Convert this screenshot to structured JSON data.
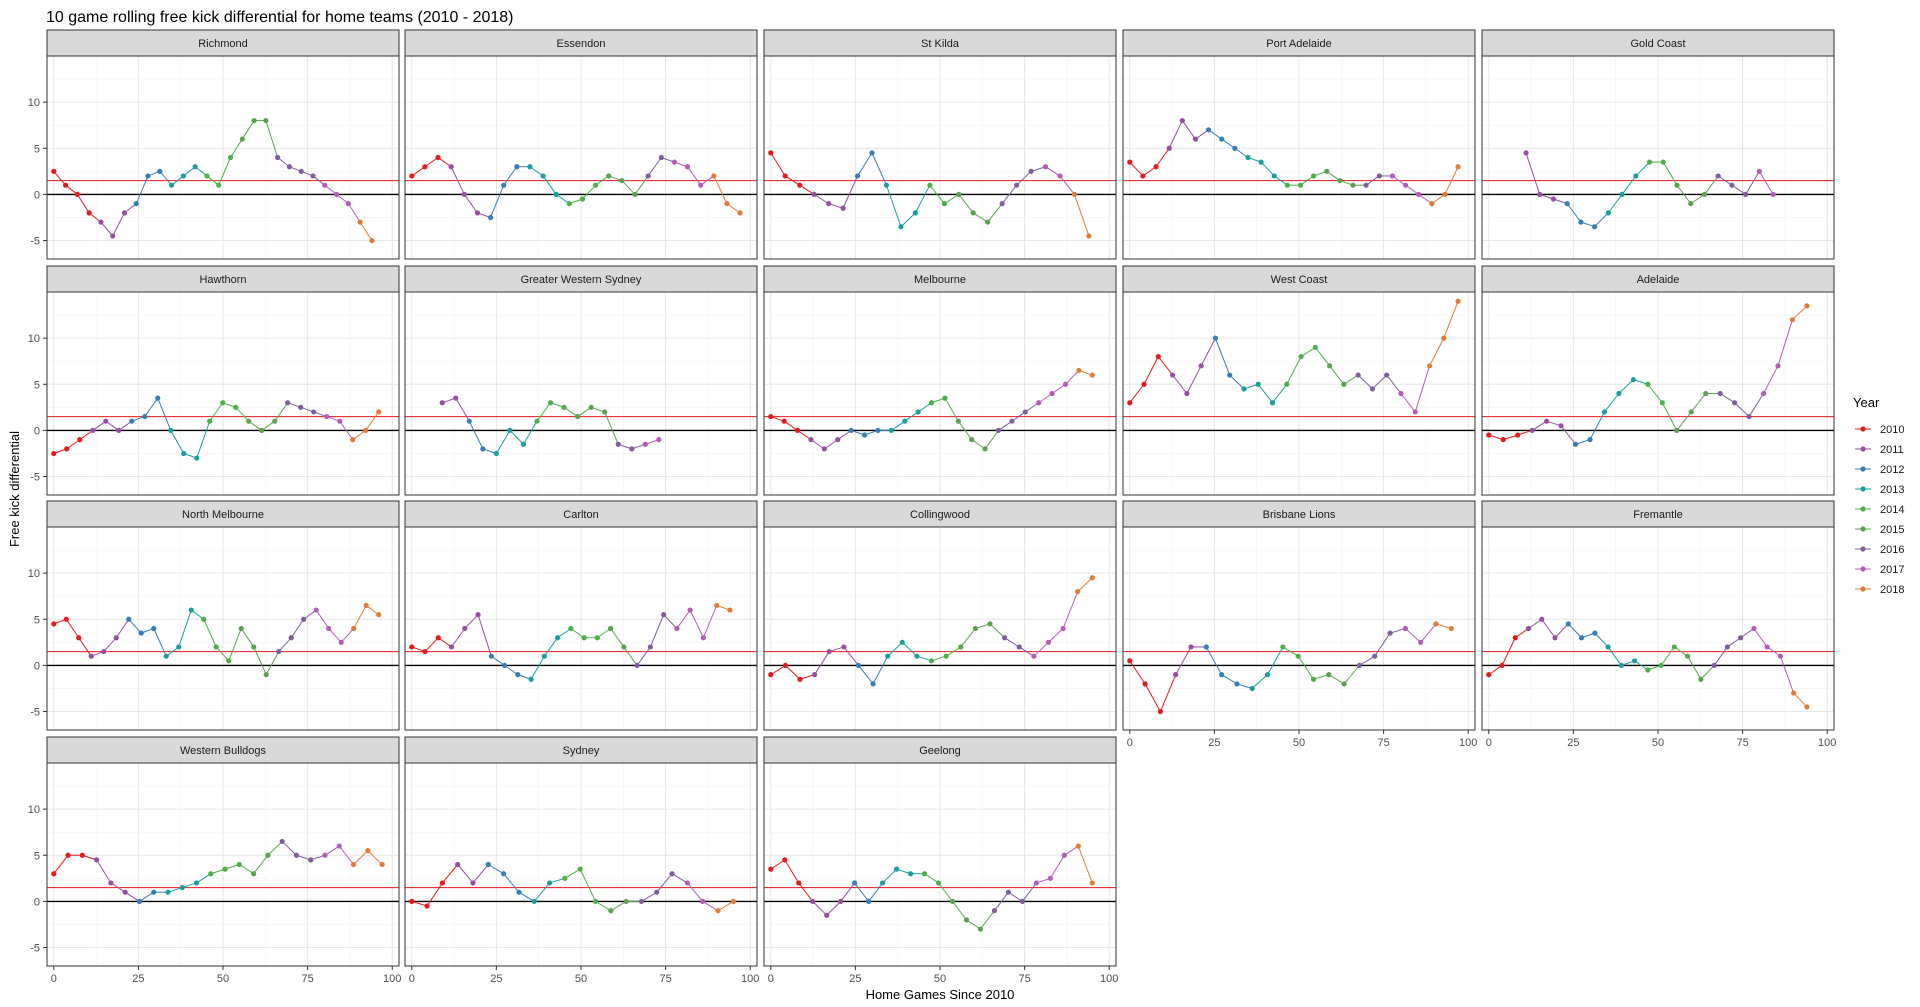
{
  "chart_data": {
    "type": "line",
    "title": "10 game rolling free kick differential for home teams (2010 - 2018)",
    "xlabel": "Home Games Since 2010",
    "ylabel": "Free kick differential",
    "xlim": [
      -2,
      102
    ],
    "ylim": [
      -7,
      15
    ],
    "x_ticks": [
      0,
      25,
      50,
      75,
      100
    ],
    "y_ticks": [
      -5,
      0,
      5,
      10
    ],
    "reference_lines": [
      {
        "y": 0,
        "color": "#000000"
      },
      {
        "y": 1.5,
        "color": "#e41a1c"
      }
    ],
    "grid": true,
    "legend": {
      "title": "Year",
      "position": "right",
      "entries": [
        {
          "label": "2010",
          "color": "#E41A1C"
        },
        {
          "label": "2011",
          "color": "#984EA3"
        },
        {
          "label": "2012",
          "color": "#377EB8"
        },
        {
          "label": "2013",
          "color": "#1B9E9E"
        },
        {
          "label": "2014",
          "color": "#4DAF4A"
        },
        {
          "label": "2015",
          "color": "#5CA150"
        },
        {
          "label": "2016",
          "color": "#7F5E9E"
        },
        {
          "label": "2017",
          "color": "#B45CB8"
        },
        {
          "label": "2018",
          "color": "#E07B39"
        }
      ]
    },
    "facets": [
      {
        "name": "Richmond",
        "games": [
          0,
          11,
          22,
          33,
          44,
          55,
          66,
          77,
          88
        ],
        "end": 94,
        "y": [
          2.5,
          1,
          0,
          -2,
          -3,
          -4.5,
          -2,
          -1,
          2,
          2.5,
          1,
          2,
          3,
          2,
          1,
          4,
          6,
          8,
          8,
          4,
          3,
          2.5,
          2,
          1,
          0,
          -1,
          -3,
          -5
        ]
      },
      {
        "name": "Essendon",
        "games": [
          0,
          11,
          22,
          33,
          44,
          55,
          66,
          77,
          88
        ],
        "end": 97,
        "y": [
          2,
          3,
          4,
          3,
          0,
          -2,
          -2.5,
          1,
          3,
          3,
          2,
          0,
          -1,
          -0.5,
          1,
          2,
          1.5,
          0,
          2,
          4,
          3.5,
          3,
          1,
          2,
          -1,
          -2
        ]
      },
      {
        "name": "St Kilda",
        "games": [
          0,
          11,
          22,
          33,
          44,
          55,
          66,
          77,
          88
        ],
        "end": 94,
        "y": [
          4.5,
          2,
          1,
          0,
          -1,
          -1.5,
          2,
          4.5,
          1,
          -3.5,
          -2,
          1,
          -1,
          0,
          -2,
          -3,
          -1,
          1,
          2.5,
          3,
          2,
          0,
          -4.5
        ]
      },
      {
        "name": "Port Adelaide",
        "games": [
          0,
          11,
          22,
          33,
          44,
          55,
          66,
          77,
          88
        ],
        "end": 97,
        "y": [
          3.5,
          2,
          3,
          5,
          8,
          6,
          7,
          6,
          5,
          4,
          3.5,
          2,
          1,
          1,
          2,
          2.5,
          1.5,
          1,
          1,
          2,
          2,
          1,
          0,
          -1,
          0,
          3
        ]
      },
      {
        "name": "Gold Coast",
        "games": [
          11,
          22,
          33,
          44,
          55,
          66,
          77,
          88
        ],
        "end": 84,
        "y": [
          4.5,
          0,
          -0.5,
          -1,
          -3,
          -3.5,
          -2,
          0,
          2,
          3.5,
          3.5,
          1,
          -1,
          0,
          2,
          1,
          0,
          2.5,
          0
        ]
      },
      {
        "name": "Hawthorn",
        "games": [
          0,
          11,
          22,
          33,
          44,
          55,
          66,
          77,
          88
        ],
        "end": 96,
        "y": [
          -2.5,
          -2,
          -1,
          0,
          1,
          0,
          1,
          1.5,
          3.5,
          0,
          -2.5,
          -3,
          1,
          3,
          2.5,
          1,
          0,
          1,
          3,
          2.5,
          2,
          1.5,
          1,
          -1,
          0,
          2
        ]
      },
      {
        "name": "Greater Western Sydney",
        "games": [
          9,
          14,
          25,
          36,
          47,
          58,
          69,
          80
        ],
        "end": 73,
        "y": [
          3,
          3.5,
          1,
          -2,
          -2.5,
          0,
          -1.5,
          1,
          3,
          2.5,
          1.5,
          2.5,
          2,
          -1.5,
          -2,
          -1.5,
          -1
        ]
      },
      {
        "name": "Melbourne",
        "games": [
          0,
          11,
          22,
          33,
          44,
          55,
          66,
          77,
          88
        ],
        "end": 95,
        "y": [
          1.5,
          1,
          0,
          -1,
          -2,
          -1,
          0,
          -0.5,
          0,
          0,
          1,
          2,
          3,
          3.5,
          1,
          -1,
          -2,
          0,
          1,
          2,
          3,
          4,
          5,
          6.5,
          6
        ]
      },
      {
        "name": "West Coast",
        "games": [
          0,
          11,
          22,
          33,
          44,
          55,
          66,
          77,
          88
        ],
        "end": 97,
        "y": [
          3,
          5,
          8,
          6,
          4,
          7,
          10,
          6,
          4.5,
          5,
          3,
          5,
          8,
          9,
          7,
          5,
          6,
          4.5,
          6,
          4,
          2,
          7,
          10,
          14
        ]
      },
      {
        "name": "Adelaide",
        "games": [
          0,
          11,
          22,
          33,
          44,
          55,
          66,
          77,
          88
        ],
        "end": 94,
        "y": [
          -0.5,
          -1,
          -0.5,
          0,
          1,
          0.5,
          -1.5,
          -1,
          2,
          4,
          5.5,
          5,
          3,
          0,
          2,
          4,
          4,
          3,
          1.5,
          4,
          7,
          12,
          13.5
        ]
      },
      {
        "name": "North Melbourne",
        "games": [
          0,
          11,
          22,
          33,
          44,
          55,
          66,
          77,
          88
        ],
        "end": 96,
        "y": [
          4.5,
          5,
          3,
          1,
          1.5,
          3,
          5,
          3.5,
          4,
          1,
          2,
          6,
          5,
          2,
          0.5,
          4,
          2,
          -1,
          1.5,
          3,
          5,
          6,
          4,
          2.5,
          4,
          6.5,
          5.5
        ]
      },
      {
        "name": "Carlton",
        "games": [
          0,
          11,
          22,
          33,
          44,
          55,
          66,
          77,
          88
        ],
        "end": 94,
        "y": [
          2,
          1.5,
          3,
          2,
          4,
          5.5,
          1,
          0,
          -1,
          -1.5,
          1,
          3,
          4,
          3,
          3,
          4,
          2,
          0,
          2,
          5.5,
          4,
          6,
          3,
          6.5,
          6
        ]
      },
      {
        "name": "Collingwood",
        "games": [
          0,
          11,
          22,
          33,
          44,
          55,
          66,
          77,
          88
        ],
        "end": 95,
        "y": [
          -1,
          0,
          -1.5,
          -1,
          1.5,
          2,
          0,
          -2,
          1,
          2.5,
          1,
          0.5,
          1,
          2,
          4,
          4.5,
          3,
          2,
          1,
          2.5,
          4,
          8,
          9.5
        ]
      },
      {
        "name": "Brisbane Lions",
        "games": [
          0,
          11,
          22,
          33,
          44,
          55,
          66,
          77,
          88
        ],
        "end": 95,
        "y": [
          0.5,
          -2,
          -5,
          -1,
          2,
          2,
          -1,
          -2,
          -2.5,
          -1,
          2,
          1,
          -1.5,
          -1,
          -2,
          0,
          1,
          3.5,
          4,
          2.5,
          4.5,
          4
        ]
      },
      {
        "name": "Fremantle",
        "games": [
          0,
          11,
          22,
          33,
          44,
          55,
          66,
          77,
          88
        ],
        "end": 94,
        "y": [
          -1,
          0,
          3,
          4,
          5,
          3,
          4.5,
          3,
          3.5,
          2,
          0,
          0.5,
          -0.5,
          0,
          2,
          1,
          -1.5,
          0,
          2,
          3,
          4,
          2,
          1,
          -3,
          -4.5
        ]
      },
      {
        "name": "Western Bulldogs",
        "games": [
          0,
          11,
          22,
          33,
          44,
          55,
          66,
          77,
          88
        ],
        "end": 97,
        "y": [
          3,
          5,
          5,
          4.5,
          2,
          1,
          0,
          1,
          1,
          1.5,
          2,
          3,
          3.5,
          4,
          3,
          5,
          6.5,
          5,
          4.5,
          5,
          6,
          4,
          5.5,
          4
        ]
      },
      {
        "name": "Sydney",
        "games": [
          0,
          11,
          22,
          33,
          44,
          55,
          66,
          77,
          88
        ],
        "end": 95,
        "y": [
          0,
          -0.5,
          2,
          4,
          2,
          4,
          3,
          1,
          0,
          2,
          2.5,
          3.5,
          0,
          -1,
          0,
          0,
          1,
          3,
          2,
          0,
          -1,
          0
        ]
      },
      {
        "name": "Geelong",
        "games": [
          0,
          11,
          22,
          33,
          44,
          55,
          66,
          77,
          88
        ],
        "end": 95,
        "y": [
          3.5,
          4.5,
          2,
          0,
          -1.5,
          0,
          2,
          0,
          2,
          3.5,
          3,
          3,
          2,
          0,
          -2,
          -3,
          -1,
          1,
          0,
          2,
          2.5,
          5,
          6,
          2
        ]
      }
    ]
  }
}
